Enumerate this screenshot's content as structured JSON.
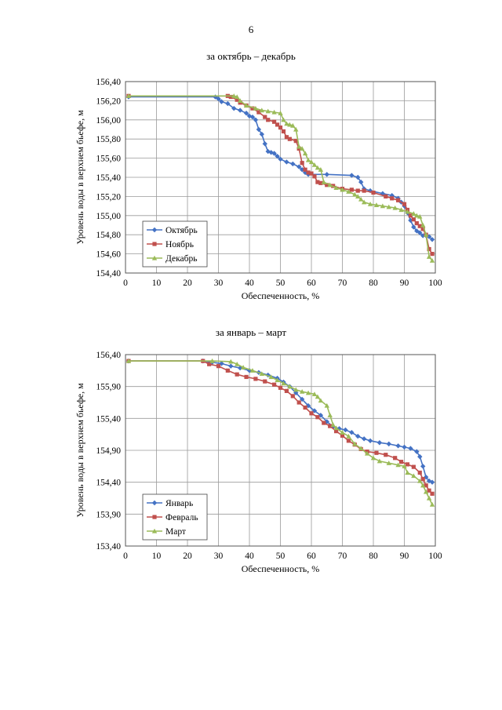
{
  "page_number": "6",
  "chart_data": [
    {
      "type": "line",
      "title": "за октябрь – декабрь",
      "xlabel": "Обеспеченность, %",
      "ylabel": "Уровень воды в верхнем бьефе, м",
      "xlim": [
        0,
        100
      ],
      "ylim": [
        154.4,
        156.4
      ],
      "xticks": [
        0,
        10,
        20,
        30,
        40,
        50,
        60,
        70,
        80,
        90,
        100
      ],
      "yticks": [
        154.4,
        154.6,
        154.8,
        155.0,
        155.2,
        155.4,
        155.6,
        155.8,
        156.0,
        156.2,
        156.4
      ],
      "x_tick_labels": [
        "0",
        "10",
        "20",
        "30",
        "40",
        "50",
        "60",
        "70",
        "80",
        "90",
        "100"
      ],
      "y_tick_labels": [
        "154,40",
        "154,60",
        "154,80",
        "155,00",
        "155,20",
        "155,40",
        "155,60",
        "155,80",
        "156,00",
        "156,20",
        "156,40"
      ],
      "grid": true,
      "legend_position": "bottom-left",
      "series": [
        {
          "name": "Октябрь",
          "color": "#4472c4",
          "marker": "diamond",
          "points": [
            [
              1,
              156.24
            ],
            [
              29,
              156.24
            ],
            [
              30,
              156.22
            ],
            [
              31,
              156.19
            ],
            [
              33,
              156.17
            ],
            [
              35,
              156.12
            ],
            [
              37,
              156.1
            ],
            [
              39,
              156.07
            ],
            [
              40,
              156.04
            ],
            [
              41,
              156.03
            ],
            [
              42,
              156.0
            ],
            [
              43,
              155.9
            ],
            [
              44,
              155.85
            ],
            [
              45,
              155.75
            ],
            [
              46,
              155.67
            ],
            [
              47,
              155.66
            ],
            [
              48,
              155.65
            ],
            [
              49,
              155.62
            ],
            [
              50,
              155.59
            ],
            [
              52,
              155.56
            ],
            [
              54,
              155.54
            ],
            [
              56,
              155.51
            ],
            [
              57,
              155.48
            ],
            [
              58,
              155.45
            ],
            [
              59,
              155.43
            ],
            [
              65,
              155.43
            ],
            [
              73,
              155.42
            ],
            [
              75,
              155.4
            ],
            [
              76,
              155.35
            ],
            [
              77,
              155.28
            ],
            [
              79,
              155.26
            ],
            [
              83,
              155.23
            ],
            [
              86,
              155.21
            ],
            [
              88,
              155.18
            ],
            [
              89,
              155.14
            ],
            [
              90,
              155.1
            ],
            [
              91,
              155.03
            ],
            [
              92,
              154.95
            ],
            [
              93,
              154.88
            ],
            [
              94,
              154.84
            ],
            [
              95,
              154.82
            ],
            [
              96,
              154.79
            ],
            [
              97,
              154.79
            ],
            [
              98,
              154.78
            ],
            [
              99,
              154.75
            ]
          ]
        },
        {
          "name": "Ноябрь",
          "color": "#c0504d",
          "marker": "square",
          "points": [
            [
              1,
              156.25
            ],
            [
              33,
              156.25
            ],
            [
              34,
              156.24
            ],
            [
              36,
              156.21
            ],
            [
              37,
              156.18
            ],
            [
              39,
              156.15
            ],
            [
              41,
              156.12
            ],
            [
              43,
              156.08
            ],
            [
              45,
              156.03
            ],
            [
              46,
              156.0
            ],
            [
              48,
              155.98
            ],
            [
              49,
              155.95
            ],
            [
              50,
              155.92
            ],
            [
              51,
              155.88
            ],
            [
              52,
              155.82
            ],
            [
              53,
              155.8
            ],
            [
              55,
              155.78
            ],
            [
              56,
              155.7
            ],
            [
              57,
              155.55
            ],
            [
              58,
              155.48
            ],
            [
              59,
              155.45
            ],
            [
              60,
              155.44
            ],
            [
              61,
              155.41
            ],
            [
              62,
              155.35
            ],
            [
              63,
              155.34
            ],
            [
              65,
              155.32
            ],
            [
              67,
              155.31
            ],
            [
              70,
              155.28
            ],
            [
              73,
              155.27
            ],
            [
              75,
              155.26
            ],
            [
              77,
              155.26
            ],
            [
              80,
              155.24
            ],
            [
              84,
              155.2
            ],
            [
              86,
              155.18
            ],
            [
              88,
              155.16
            ],
            [
              90,
              155.12
            ],
            [
              91,
              155.06
            ],
            [
              92,
              155.0
            ],
            [
              93,
              154.96
            ],
            [
              94,
              154.92
            ],
            [
              95,
              154.89
            ],
            [
              96,
              154.86
            ],
            [
              97,
              154.8
            ],
            [
              98,
              154.65
            ],
            [
              99,
              154.6
            ]
          ]
        },
        {
          "name": "Декабрь",
          "color": "#9bbb59",
          "marker": "triangle",
          "points": [
            [
              1,
              156.25
            ],
            [
              35,
              156.25
            ],
            [
              36,
              156.24
            ],
            [
              37,
              156.2
            ],
            [
              39,
              156.15
            ],
            [
              42,
              156.12
            ],
            [
              44,
              156.1
            ],
            [
              46,
              156.09
            ],
            [
              48,
              156.08
            ],
            [
              50,
              156.07
            ],
            [
              51,
              156.0
            ],
            [
              52,
              155.96
            ],
            [
              53,
              155.95
            ],
            [
              54,
              155.94
            ],
            [
              55,
              155.9
            ],
            [
              56,
              155.72
            ],
            [
              57,
              155.7
            ],
            [
              58,
              155.65
            ],
            [
              59,
              155.58
            ],
            [
              60,
              155.56
            ],
            [
              61,
              155.53
            ],
            [
              62,
              155.5
            ],
            [
              63,
              155.48
            ],
            [
              64,
              155.35
            ],
            [
              66,
              155.32
            ],
            [
              68,
              155.29
            ],
            [
              70,
              155.27
            ],
            [
              72,
              155.25
            ],
            [
              74,
              155.22
            ],
            [
              75,
              155.2
            ],
            [
              76,
              155.17
            ],
            [
              77,
              155.14
            ],
            [
              79,
              155.12
            ],
            [
              81,
              155.11
            ],
            [
              83,
              155.1
            ],
            [
              85,
              155.09
            ],
            [
              87,
              155.08
            ],
            [
              89,
              155.06
            ],
            [
              91,
              155.04
            ],
            [
              93,
              155.02
            ],
            [
              94,
              155.0
            ],
            [
              95,
              154.99
            ],
            [
              96,
              154.9
            ],
            [
              97,
              154.8
            ],
            [
              98,
              154.57
            ],
            [
              99,
              154.53
            ]
          ]
        }
      ]
    },
    {
      "type": "line",
      "title": "за январь – март",
      "xlabel": "Обеспеченность, %",
      "ylabel": "Уровень воды в верхнем бьефе, м",
      "xlim": [
        0,
        100
      ],
      "ylim": [
        153.4,
        156.4
      ],
      "xticks": [
        0,
        10,
        20,
        30,
        40,
        50,
        60,
        70,
        80,
        90,
        100
      ],
      "yticks": [
        153.4,
        153.9,
        154.4,
        154.9,
        155.4,
        155.9,
        156.4
      ],
      "x_tick_labels": [
        "0",
        "10",
        "20",
        "30",
        "40",
        "50",
        "60",
        "70",
        "80",
        "90",
        "100"
      ],
      "y_tick_labels": [
        "153,40",
        "153,90",
        "154,40",
        "154,90",
        "155,40",
        "155,90",
        "156,40"
      ],
      "grid": true,
      "legend_position": "bottom-left",
      "series": [
        {
          "name": "Январь",
          "color": "#4472c4",
          "marker": "diamond",
          "points": [
            [
              1,
              156.3
            ],
            [
              25,
              156.3
            ],
            [
              28,
              156.28
            ],
            [
              31,
              156.26
            ],
            [
              34,
              156.22
            ],
            [
              37,
              156.19
            ],
            [
              40,
              156.15
            ],
            [
              43,
              156.12
            ],
            [
              46,
              156.08
            ],
            [
              49,
              156.03
            ],
            [
              51,
              155.97
            ],
            [
              53,
              155.9
            ],
            [
              55,
              155.8
            ],
            [
              57,
              155.7
            ],
            [
              59,
              155.6
            ],
            [
              61,
              155.52
            ],
            [
              63,
              155.45
            ],
            [
              65,
              155.35
            ],
            [
              67,
              155.27
            ],
            [
              69,
              155.24
            ],
            [
              71,
              155.22
            ],
            [
              73,
              155.18
            ],
            [
              75,
              155.12
            ],
            [
              77,
              155.08
            ],
            [
              79,
              155.05
            ],
            [
              82,
              155.02
            ],
            [
              85,
              155.0
            ],
            [
              88,
              154.97
            ],
            [
              90,
              154.95
            ],
            [
              92,
              154.93
            ],
            [
              94,
              154.88
            ],
            [
              95,
              154.8
            ],
            [
              96,
              154.65
            ],
            [
              97,
              154.48
            ],
            [
              98,
              154.42
            ],
            [
              99,
              154.4
            ]
          ]
        },
        {
          "name": "Февраль",
          "color": "#c0504d",
          "marker": "square",
          "points": [
            [
              1,
              156.3
            ],
            [
              25,
              156.3
            ],
            [
              27,
              156.25
            ],
            [
              30,
              156.22
            ],
            [
              33,
              156.15
            ],
            [
              36,
              156.09
            ],
            [
              39,
              156.05
            ],
            [
              42,
              156.02
            ],
            [
              45,
              155.98
            ],
            [
              48,
              155.93
            ],
            [
              50,
              155.88
            ],
            [
              52,
              155.83
            ],
            [
              54,
              155.75
            ],
            [
              56,
              155.65
            ],
            [
              58,
              155.57
            ],
            [
              60,
              155.48
            ],
            [
              62,
              155.42
            ],
            [
              64,
              155.33
            ],
            [
              66,
              155.28
            ],
            [
              68,
              155.2
            ],
            [
              70,
              155.13
            ],
            [
              72,
              155.05
            ],
            [
              74,
              154.99
            ],
            [
              76,
              154.92
            ],
            [
              78,
              154.88
            ],
            [
              81,
              154.86
            ],
            [
              84,
              154.83
            ],
            [
              87,
              154.78
            ],
            [
              89,
              154.72
            ],
            [
              91,
              154.68
            ],
            [
              93,
              154.64
            ],
            [
              95,
              154.55
            ],
            [
              96,
              154.45
            ],
            [
              97,
              154.35
            ],
            [
              98,
              154.27
            ],
            [
              99,
              154.22
            ]
          ]
        },
        {
          "name": "Март",
          "color": "#9bbb59",
          "marker": "triangle",
          "points": [
            [
              1,
              156.3
            ],
            [
              28,
              156.3
            ],
            [
              34,
              156.29
            ],
            [
              36,
              156.25
            ],
            [
              38,
              156.2
            ],
            [
              41,
              156.15
            ],
            [
              44,
              156.1
            ],
            [
              47,
              156.05
            ],
            [
              49,
              156.0
            ],
            [
              51,
              155.95
            ],
            [
              53,
              155.9
            ],
            [
              55,
              155.85
            ],
            [
              57,
              155.82
            ],
            [
              59,
              155.8
            ],
            [
              61,
              155.78
            ],
            [
              62,
              155.74
            ],
            [
              63,
              155.68
            ],
            [
              65,
              155.6
            ],
            [
              66,
              155.45
            ],
            [
              67,
              155.3
            ],
            [
              68,
              155.25
            ],
            [
              70,
              155.18
            ],
            [
              72,
              155.12
            ],
            [
              74,
              155.0
            ],
            [
              76,
              154.93
            ],
            [
              78,
              154.85
            ],
            [
              80,
              154.78
            ],
            [
              82,
              154.73
            ],
            [
              85,
              154.7
            ],
            [
              88,
              154.67
            ],
            [
              90,
              154.65
            ],
            [
              91,
              154.55
            ],
            [
              93,
              154.5
            ],
            [
              95,
              154.42
            ],
            [
              96,
              154.35
            ],
            [
              97,
              154.25
            ],
            [
              98,
              154.15
            ],
            [
              99,
              154.05
            ]
          ]
        }
      ]
    }
  ]
}
